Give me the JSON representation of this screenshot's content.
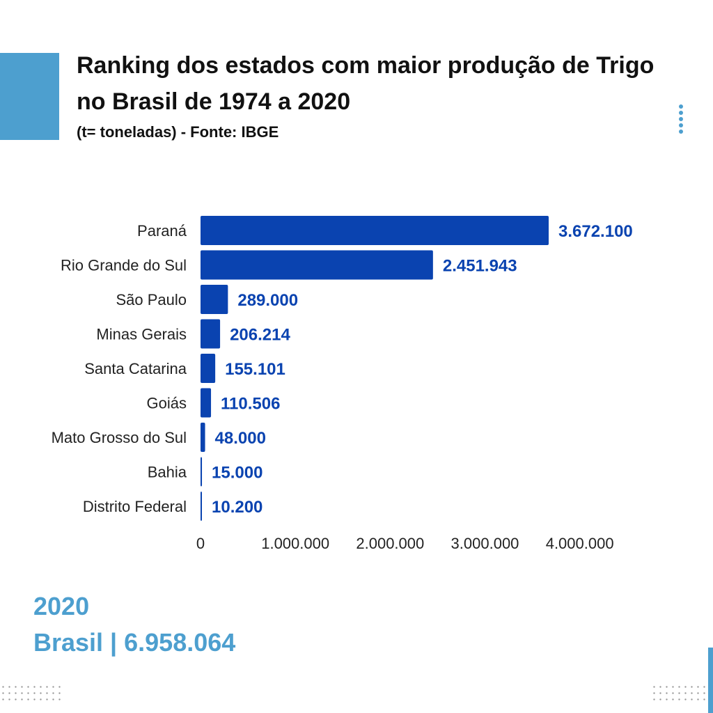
{
  "header": {
    "title": "Ranking dos estados com maior produção de Trigo no Brasil de 1974 a 2020",
    "subtitle": "(t= toneladas) - Fonte: IBGE"
  },
  "footer": {
    "year": "2020",
    "total_label": "Brasil | 6.958.064"
  },
  "colors": {
    "bar": "#0a43b0",
    "value_label": "#0a43b0",
    "accent": "#4d9fcf",
    "text": "#222222"
  },
  "chart_data": {
    "type": "bar",
    "orientation": "horizontal",
    "title": "Ranking dos estados com maior produção de Trigo no Brasil de 1974 a 2020",
    "subtitle": "(t= toneladas) - Fonte: IBGE",
    "categories": [
      "Paraná",
      "Rio Grande do Sul",
      "São Paulo",
      "Minas Gerais",
      "Santa Catarina",
      "Goiás",
      "Mato Grosso do Sul",
      "Bahia",
      "Distrito Federal"
    ],
    "values": [
      3672100,
      2451943,
      289000,
      206214,
      155101,
      110506,
      48000,
      15000,
      10200
    ],
    "value_labels": [
      "3.672.100",
      "2.451.943",
      "289.000",
      "206.214",
      "155.101",
      "110.506",
      "48.000",
      "15.000",
      "10.200"
    ],
    "xlim": [
      0,
      4000000
    ],
    "x_ticks": [
      0,
      1000000,
      2000000,
      3000000,
      4000000
    ],
    "x_tick_labels": [
      "0",
      "1.000.000",
      "2.000.000",
      "3.000.000",
      "4.000.000"
    ],
    "xlabel": "",
    "ylabel": "",
    "grid": false,
    "legend": "none"
  }
}
